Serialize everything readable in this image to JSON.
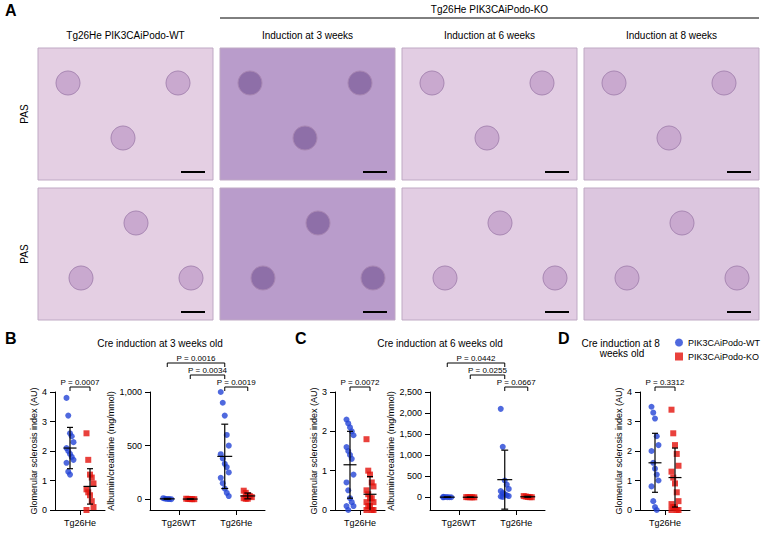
{
  "figure_a": {
    "panel": "A",
    "group_header": "Tg26He PIK3CAiPodo-KO",
    "columns": [
      "Tg26He PIK3CAiPodo-WT",
      "Induction at 3 weeks",
      "Induction at 6 weeks",
      "Induction at 8 weeks"
    ],
    "row_labels": [
      "PAS",
      "PAS"
    ]
  },
  "chart_data": [
    {
      "type": "scatter",
      "panel": "B",
      "title": "Cre induction at 3 weeks old",
      "y_label": "Glomerular sclerosis index (AU)",
      "categories": [
        "Tg26He"
      ],
      "ylim": [
        0,
        4
      ],
      "yticks": [
        0,
        1,
        2,
        3,
        4
      ],
      "series": [
        {
          "name": "PIK3CAiPodo-WT",
          "color": "#2344d6",
          "marker": "circle",
          "values": [
            [
              3.8,
              3.2,
              2.6,
              2.5,
              2.3,
              2.1,
              2.0,
              1.9,
              1.8,
              1.7,
              1.6,
              1.3,
              1.2
            ]
          ],
          "mean": [
            2.1
          ],
          "sd": [
            0.7
          ]
        },
        {
          "name": "PIK3CAiPodo-KO",
          "color": "#e3120b",
          "marker": "square",
          "values": [
            [
              2.6,
              1.7,
              1.2,
              1.1,
              0.9,
              0.7,
              0.6,
              0.5,
              0.3,
              0.1,
              0.0
            ]
          ],
          "mean": [
            0.8
          ],
          "sd": [
            0.6
          ]
        }
      ],
      "brackets": [
        {
          "label": "P = 0.0007",
          "from": {
            "category": "Tg26He",
            "series": "PIK3CAiPodo-WT"
          },
          "to": {
            "category": "Tg26He",
            "series": "PIK3CAiPodo-KO"
          }
        }
      ]
    },
    {
      "type": "scatter",
      "y_label": "Albumin/creatinine (mg/mmol)",
      "categories": [
        "Tg26WT",
        "Tg26He"
      ],
      "ylim": [
        -100,
        1000
      ],
      "yticks": [
        0,
        500,
        1000
      ],
      "series": [
        {
          "name": "PIK3CAiPodo-WT",
          "color": "#2344d6",
          "marker": "circle",
          "values": [
            [
              10,
              5,
              3,
              2,
              1
            ],
            [
              1000,
              900,
              780,
              600,
              500,
              420,
              380,
              330,
              300,
              250,
              200,
              150,
              100,
              60,
              30
            ]
          ],
          "mean": [
            4,
            400
          ],
          "sd": [
            4,
            300
          ]
        },
        {
          "name": "PIK3CAiPodo-KO",
          "color": "#e3120b",
          "marker": "square",
          "values": [
            [
              5,
              3,
              2,
              1,
              1
            ],
            [
              80,
              60,
              40,
              30,
              20,
              10,
              5,
              5
            ]
          ],
          "mean": [
            2,
            31
          ],
          "sd": [
            2,
            27
          ]
        }
      ],
      "brackets": [
        {
          "label": "P = 0.0019",
          "from": {
            "category": "Tg26He",
            "series": "PIK3CAiPodo-WT"
          },
          "to": {
            "category": "Tg26He",
            "series": "PIK3CAiPodo-KO"
          }
        },
        {
          "label": "P = 0.0034",
          "from": {
            "category": "Tg26WT",
            "series": "PIK3CAiPodo-KO"
          },
          "to": {
            "category": "Tg26He",
            "series": "PIK3CAiPodo-WT"
          }
        },
        {
          "label": "P = 0.0016",
          "from": {
            "category": "Tg26WT",
            "series": "PIK3CAiPodo-WT"
          },
          "to": {
            "category": "Tg26He",
            "series": "PIK3CAiPodo-WT"
          }
        }
      ]
    },
    {
      "type": "scatter",
      "panel": "C",
      "title": "Cre induction at 6 weeks old",
      "y_label": "Glomerular sclerosis index (AU)",
      "categories": [
        "Tg26He"
      ],
      "ylim": [
        0,
        3
      ],
      "yticks": [
        0,
        1,
        2,
        3
      ],
      "series": [
        {
          "name": "PIK3CAiPodo-WT",
          "color": "#2344d6",
          "marker": "circle",
          "values": [
            [
              2.3,
              2.2,
              2.1,
              2.0,
              1.9,
              1.6,
              1.5,
              1.4,
              1.3,
              0.9,
              0.7,
              0.5,
              0.3,
              0.2,
              0.1,
              0.1,
              0.0
            ]
          ],
          "mean": [
            1.15
          ],
          "sd": [
            0.85
          ]
        },
        {
          "name": "PIK3CAiPodo-KO",
          "color": "#e3120b",
          "marker": "square",
          "values": [
            [
              1.8,
              1.0,
              0.9,
              0.7,
              0.6,
              0.5,
              0.4,
              0.3,
              0.3,
              0.2,
              0.2,
              0.1,
              0.1,
              0.0,
              0.0,
              0.0
            ]
          ],
          "mean": [
            0.4
          ],
          "sd": [
            0.45
          ]
        }
      ],
      "brackets": [
        {
          "label": "P = 0.0072",
          "from": {
            "category": "Tg26He",
            "series": "PIK3CAiPodo-WT"
          },
          "to": {
            "category": "Tg26He",
            "series": "PIK3CAiPodo-KO"
          }
        }
      ]
    },
    {
      "type": "scatter",
      "y_label": "Albumin/creatinine (mg/mmol)",
      "categories": [
        "Tg26WT",
        "Tg26He"
      ],
      "ylim": [
        -300,
        2500
      ],
      "yticks": [
        0,
        500,
        1000,
        1500,
        2000,
        2500
      ],
      "series": [
        {
          "name": "PIK3CAiPodo-WT",
          "color": "#2344d6",
          "marker": "circle",
          "values": [
            [
              12,
              8,
              5,
              3,
              2,
              1
            ],
            [
              2100,
              1200,
              400,
              300,
              200,
              150,
              100,
              80,
              50,
              30,
              20,
              10
            ]
          ],
          "mean": [
            5,
            420
          ],
          "sd": [
            4,
            700
          ]
        },
        {
          "name": "PIK3CAiPodo-KO",
          "color": "#e3120b",
          "marker": "square",
          "values": [
            [
              6,
              4,
              3,
              2,
              1
            ],
            [
              30,
              20,
              10,
              5,
              3
            ]
          ],
          "mean": [
            3,
            14
          ],
          "sd": [
            2,
            11
          ]
        }
      ],
      "brackets": [
        {
          "label": "P = 0.0667",
          "from": {
            "category": "Tg26He",
            "series": "PIK3CAiPodo-WT"
          },
          "to": {
            "category": "Tg26He",
            "series": "PIK3CAiPodo-KO"
          }
        },
        {
          "label": "P = 0.0255",
          "from": {
            "category": "Tg26WT",
            "series": "PIK3CAiPodo-KO"
          },
          "to": {
            "category": "Tg26He",
            "series": "PIK3CAiPodo-WT"
          }
        },
        {
          "label": "P = 0.0442",
          "from": {
            "category": "Tg26WT",
            "series": "PIK3CAiPodo-WT"
          },
          "to": {
            "category": "Tg26He",
            "series": "PIK3CAiPodo-WT"
          }
        }
      ]
    },
    {
      "type": "scatter",
      "panel": "D",
      "title": "Cre induction at 8 weeks old",
      "y_label": "Glomerular sclerosis index (AU)",
      "categories": [
        "Tg26He"
      ],
      "ylim": [
        0,
        4
      ],
      "yticks": [
        0,
        1,
        2,
        3,
        4
      ],
      "legend": "upper right",
      "series": [
        {
          "name": "PIK3CAiPodo-WT",
          "color": "#2344d6",
          "marker": "circle",
          "values": [
            [
              3.5,
              3.3,
              3.1,
              2.5,
              2.2,
              2.0,
              1.6,
              1.4,
              1.2,
              1.0,
              0.8,
              0.3,
              0.1,
              0.0
            ]
          ],
          "mean": [
            1.6
          ],
          "sd": [
            1.0
          ]
        },
        {
          "name": "PIK3CAiPodo-KO",
          "color": "#e3120b",
          "marker": "square",
          "values": [
            [
              3.4,
              2.6,
              2.2,
              1.9,
              1.5,
              1.3,
              1.1,
              0.9,
              0.6,
              0.3,
              0.2,
              0.1,
              0.1,
              0.0,
              0.0,
              0.0
            ]
          ],
          "mean": [
            1.1
          ],
          "sd": [
            1.0
          ]
        }
      ],
      "brackets": [
        {
          "label": "P = 0.3312",
          "from": {
            "category": "Tg26He",
            "series": "PIK3CAiPodo-WT"
          },
          "to": {
            "category": "Tg26He",
            "series": "PIK3CAiPodo-KO"
          }
        }
      ]
    }
  ]
}
